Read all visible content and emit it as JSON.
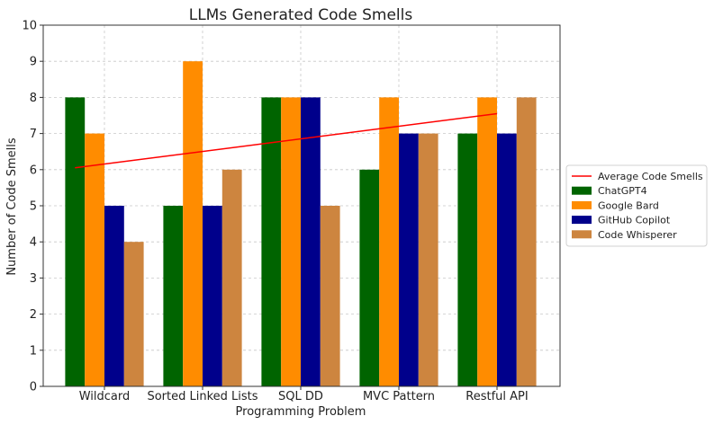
{
  "chart_data": {
    "type": "bar",
    "title": "LLMs Generated Code Smells",
    "xlabel": "Programming Problem",
    "ylabel": "Number of Code Smells",
    "categories": [
      "Wildcard",
      "Sorted Linked Lists",
      "SQL DD",
      "MVC Pattern",
      "Restful API"
    ],
    "ylim": [
      0,
      10
    ],
    "yticks": [
      0,
      1,
      2,
      3,
      4,
      5,
      6,
      7,
      8,
      9,
      10
    ],
    "grid": true,
    "legend_position": "center-right",
    "series": [
      {
        "name": "ChatGPT4",
        "color": "#006400",
        "values": [
          8,
          5,
          8,
          6,
          7
        ]
      },
      {
        "name": "Google Bard",
        "color": "#FF8C00",
        "values": [
          7,
          9,
          8,
          8,
          8
        ]
      },
      {
        "name": "GitHub Copilot",
        "color": "#00008B",
        "values": [
          5,
          5,
          8,
          7,
          7
        ]
      },
      {
        "name": "Code Whisperer",
        "color": "#CD853F",
        "values": [
          4,
          6,
          5,
          7,
          8
        ]
      }
    ],
    "average_line": {
      "name": "Average Code Smells",
      "color": "#FF0000",
      "start_value": 6.05,
      "end_value": 7.55
    }
  }
}
